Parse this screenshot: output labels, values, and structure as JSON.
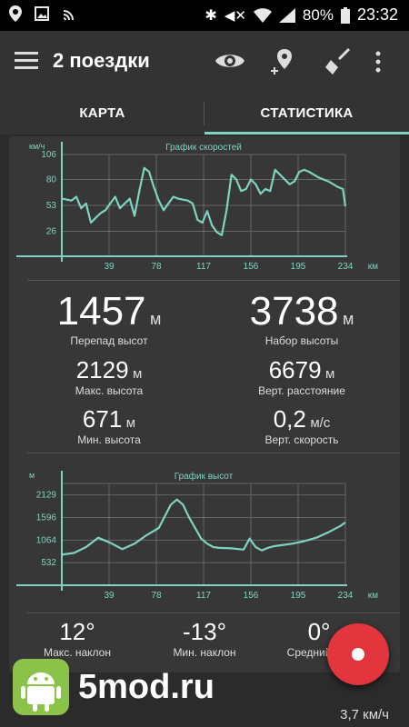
{
  "status": {
    "battery": "80%",
    "time": "23:32"
  },
  "appbar": {
    "title": "2 поездки"
  },
  "tabs": [
    {
      "label": "КАРТА"
    },
    {
      "label": "СТАТИСТИКА"
    }
  ],
  "speed_chart": {
    "title": "График скоростей",
    "y_unit": "км/ч",
    "x_unit": "км",
    "y_ticks": [
      "106",
      "80",
      "53",
      "26"
    ],
    "x_ticks": [
      "39",
      "78",
      "117",
      "156",
      "195",
      "234"
    ]
  },
  "stats": {
    "elev_diff": {
      "value": "1457",
      "unit": "м",
      "label": "Перепад высот"
    },
    "elev_gain": {
      "value": "3738",
      "unit": "м",
      "label": "Набор высоты"
    },
    "max_alt": {
      "value": "2129",
      "unit": "м",
      "label": "Макс. высота"
    },
    "vert_dist": {
      "value": "6679",
      "unit": "м",
      "label": "Верт. расстояние"
    },
    "min_alt": {
      "value": "671",
      "unit": "м",
      "label": "Мин. высота"
    },
    "vert_speed": {
      "value": "0,2",
      "unit": "м/с",
      "label": "Верт. скорость"
    }
  },
  "alt_chart": {
    "title": "График высот",
    "y_unit": "м",
    "x_unit": "км",
    "y_ticks": [
      "2129",
      "1596",
      "1064",
      "532"
    ],
    "x_ticks": [
      "39",
      "78",
      "117",
      "156",
      "195",
      "234"
    ]
  },
  "slopes": {
    "max": {
      "value": "12°",
      "label": "Макс. наклон"
    },
    "min": {
      "value": "-13°",
      "label": "Мин. наклон"
    },
    "avg": {
      "value": "0°",
      "label": "Средний нак"
    }
  },
  "bottom": {
    "speed": "3,7 км/ч"
  },
  "watermark": {
    "text": "5mod.ru"
  },
  "colors": {
    "accent": "#7fd3c1",
    "fab": "#e2353d",
    "background": "#2b2b2b",
    "card": "#373737"
  },
  "chart_data": [
    {
      "type": "line",
      "title": "График скоростей",
      "xlabel": "км",
      "ylabel": "км/ч",
      "xlim": [
        0,
        234
      ],
      "ylim": [
        0,
        106
      ],
      "x": [
        0,
        8,
        12,
        16,
        20,
        24,
        28,
        32,
        36,
        40,
        44,
        48,
        52,
        56,
        60,
        64,
        68,
        72,
        76,
        80,
        84,
        88,
        92,
        96,
        100,
        104,
        108,
        112,
        116,
        120,
        124,
        128,
        132,
        136,
        140,
        144,
        148,
        152,
        156,
        160,
        164,
        168,
        172,
        176,
        180,
        184,
        188,
        192,
        196,
        200,
        204,
        208,
        212,
        216,
        220,
        224,
        228,
        232,
        234
      ],
      "y": [
        60,
        58,
        62,
        50,
        55,
        35,
        40,
        45,
        48,
        55,
        62,
        50,
        55,
        60,
        42,
        68,
        92,
        88,
        72,
        58,
        48,
        55,
        62,
        60,
        59,
        58,
        55,
        38,
        35,
        47,
        32,
        25,
        22,
        48,
        85,
        80,
        68,
        70,
        80,
        75,
        65,
        70,
        68,
        90,
        85,
        80,
        75,
        78,
        88,
        90,
        88,
        85,
        82,
        80,
        78,
        75,
        72,
        70,
        52
      ]
    },
    {
      "type": "line",
      "title": "График высот",
      "xlabel": "км",
      "ylabel": "м",
      "xlim": [
        0,
        234
      ],
      "ylim": [
        0,
        2400
      ],
      "x": [
        0,
        10,
        20,
        30,
        40,
        50,
        60,
        70,
        80,
        90,
        95,
        100,
        105,
        110,
        115,
        120,
        125,
        130,
        140,
        150,
        155,
        160,
        165,
        170,
        175,
        180,
        190,
        200,
        210,
        220,
        230,
        234
      ],
      "y": [
        720,
        760,
        900,
        1120,
        1000,
        850,
        980,
        1180,
        1350,
        1900,
        2020,
        1900,
        1600,
        1350,
        1100,
        980,
        900,
        880,
        870,
        840,
        1100,
        900,
        820,
        880,
        920,
        940,
        980,
        1040,
        1120,
        1250,
        1400,
        1480
      ]
    }
  ]
}
